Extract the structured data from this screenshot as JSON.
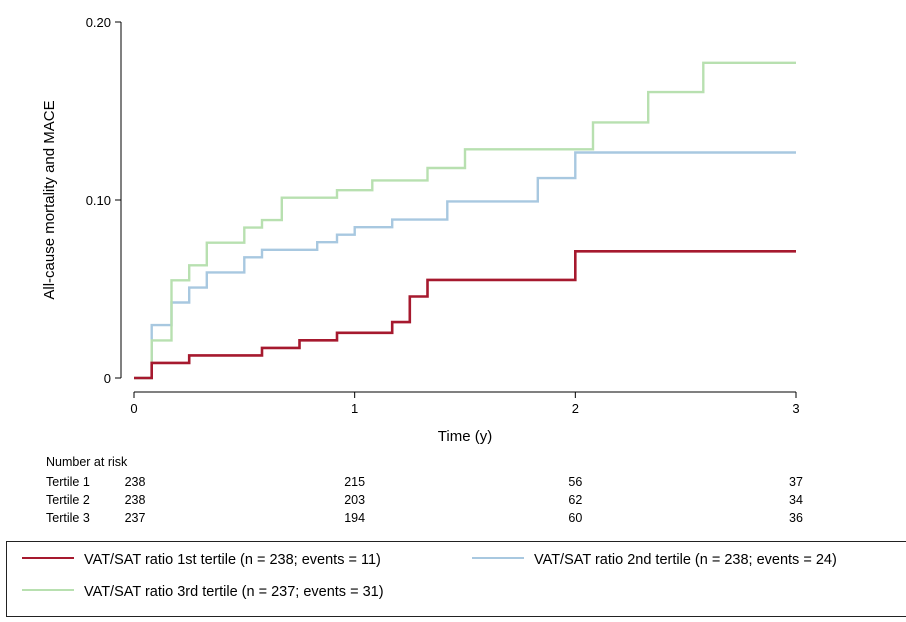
{
  "chart_data": {
    "type": "line",
    "subtype": "kaplan-meier-step",
    "ylabel": "All-cause mortality and MACE",
    "xlabel": "Time (y)",
    "xlim": [
      0,
      3
    ],
    "ylim": [
      0,
      0.2
    ],
    "x_ticks": [
      0,
      1,
      2,
      3
    ],
    "x_tick_labels": [
      "0",
      "1",
      "2",
      "3"
    ],
    "y_ticks": [
      0,
      0.1,
      0.2
    ],
    "y_tick_labels": [
      "0",
      "0.10",
      "0.20"
    ],
    "grid": false,
    "series": [
      {
        "name": "VAT/SAT ratio 1st tertile (n = 238; events = 11)",
        "color": "#a6192e",
        "points": [
          [
            0,
            0
          ],
          [
            0.08,
            0
          ],
          [
            0.08,
            0.0085
          ],
          [
            0.25,
            0.0085
          ],
          [
            0.25,
            0.0127
          ],
          [
            0.58,
            0.0127
          ],
          [
            0.58,
            0.0169
          ],
          [
            0.75,
            0.0169
          ],
          [
            0.75,
            0.0212
          ],
          [
            0.92,
            0.0212
          ],
          [
            0.92,
            0.0254
          ],
          [
            1.17,
            0.0254
          ],
          [
            1.17,
            0.0314
          ],
          [
            1.25,
            0.0314
          ],
          [
            1.25,
            0.0458
          ],
          [
            1.33,
            0.0458
          ],
          [
            1.33,
            0.0551
          ],
          [
            2.0,
            0.0551
          ],
          [
            2.0,
            0.0712
          ],
          [
            3.0,
            0.0712
          ]
        ]
      },
      {
        "name": "VAT/SAT ratio 2nd tertile (n = 238; events = 24)",
        "color": "#a8c8e0",
        "points": [
          [
            0,
            0
          ],
          [
            0.08,
            0
          ],
          [
            0.08,
            0.0297
          ],
          [
            0.17,
            0.0297
          ],
          [
            0.17,
            0.0424
          ],
          [
            0.25,
            0.0424
          ],
          [
            0.25,
            0.0508
          ],
          [
            0.33,
            0.0508
          ],
          [
            0.33,
            0.0593
          ],
          [
            0.5,
            0.0593
          ],
          [
            0.5,
            0.0678
          ],
          [
            0.58,
            0.0678
          ],
          [
            0.58,
            0.072
          ],
          [
            0.83,
            0.072
          ],
          [
            0.83,
            0.0763
          ],
          [
            0.92,
            0.0763
          ],
          [
            0.92,
            0.0805
          ],
          [
            1.0,
            0.0805
          ],
          [
            1.0,
            0.0847
          ],
          [
            1.17,
            0.0847
          ],
          [
            1.17,
            0.089
          ],
          [
            1.42,
            0.089
          ],
          [
            1.42,
            0.0992
          ],
          [
            1.83,
            0.0992
          ],
          [
            1.83,
            0.1123
          ],
          [
            2.0,
            0.1123
          ],
          [
            2.0,
            0.1267
          ],
          [
            3.0,
            0.1267
          ]
        ]
      },
      {
        "name": "VAT/SAT ratio 3rd tertile (n = 237; events = 31)",
        "color": "#b8e0b0",
        "points": [
          [
            0,
            0
          ],
          [
            0.08,
            0
          ],
          [
            0.08,
            0.0211
          ],
          [
            0.17,
            0.0211
          ],
          [
            0.17,
            0.0549
          ],
          [
            0.25,
            0.0549
          ],
          [
            0.25,
            0.0633
          ],
          [
            0.33,
            0.0633
          ],
          [
            0.33,
            0.076
          ],
          [
            0.5,
            0.076
          ],
          [
            0.5,
            0.0845
          ],
          [
            0.58,
            0.0845
          ],
          [
            0.58,
            0.0887
          ],
          [
            0.67,
            0.0887
          ],
          [
            0.67,
            0.1013
          ],
          [
            0.92,
            0.1013
          ],
          [
            0.92,
            0.1055
          ],
          [
            1.08,
            0.1055
          ],
          [
            1.08,
            0.111
          ],
          [
            1.33,
            0.111
          ],
          [
            1.33,
            0.118
          ],
          [
            1.5,
            0.118
          ],
          [
            1.5,
            0.1285
          ],
          [
            2.08,
            0.1285
          ],
          [
            2.08,
            0.1436
          ],
          [
            2.33,
            0.1436
          ],
          [
            2.33,
            0.1606
          ],
          [
            2.58,
            0.1606
          ],
          [
            2.58,
            0.1771
          ],
          [
            3.0,
            0.1771
          ]
        ]
      }
    ],
    "risk_table": {
      "title": "Number at risk",
      "time_points": [
        0,
        1,
        2,
        3
      ],
      "rows": [
        {
          "label": "Tertile 1",
          "values": [
            "238",
            "215",
            "56",
            "37"
          ]
        },
        {
          "label": "Tertile 2",
          "values": [
            "238",
            "203",
            "62",
            "34"
          ]
        },
        {
          "label": "Tertile 3",
          "values": [
            "237",
            "194",
            "60",
            "36"
          ]
        }
      ]
    },
    "legend": {
      "position": "bottom",
      "entries": [
        "VAT/SAT ratio 1st tertile (n = 238; events = 11)",
        "VAT/SAT ratio 2nd tertile (n = 238; events = 24)",
        "VAT/SAT ratio 3rd tertile (n = 237; events = 31)"
      ]
    }
  }
}
